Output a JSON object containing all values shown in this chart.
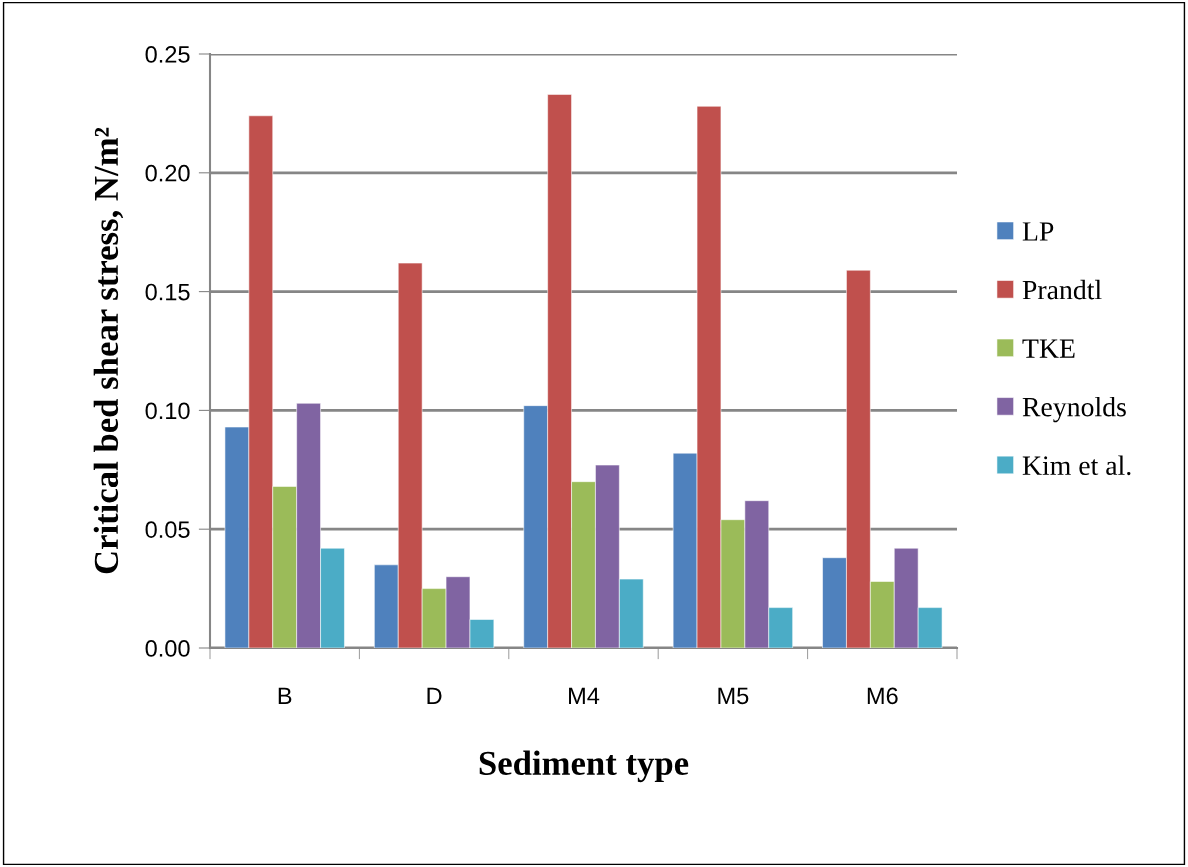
{
  "chart_data": {
    "type": "bar",
    "xlabel": "Sediment type",
    "ylabel": "Critical bed shear stress, N/m²",
    "categories": [
      "B",
      "D",
      "M4",
      "M5",
      "M6"
    ],
    "series": [
      {
        "name": "LP",
        "color": "#4f81bd",
        "values": [
          0.093,
          0.035,
          0.102,
          0.082,
          0.038
        ]
      },
      {
        "name": "Prandtl",
        "color": "#c0504d",
        "values": [
          0.224,
          0.162,
          0.233,
          0.228,
          0.159
        ]
      },
      {
        "name": "TKE",
        "color": "#9bbb59",
        "values": [
          0.068,
          0.025,
          0.07,
          0.054,
          0.028
        ]
      },
      {
        "name": "Reynolds",
        "color": "#8064a2",
        "values": [
          0.103,
          0.03,
          0.077,
          0.062,
          0.042
        ]
      },
      {
        "name": "Kim et al.",
        "color": "#4bacc6",
        "values": [
          0.042,
          0.012,
          0.029,
          0.017,
          0.017
        ]
      }
    ],
    "ylim": [
      0,
      0.25
    ],
    "yticks": [
      {
        "value": 0,
        "label": "0.00"
      },
      {
        "value": 0.05,
        "label": "0.05"
      },
      {
        "value": 0.1,
        "label": "0.10"
      },
      {
        "value": 0.15,
        "label": "0.15"
      },
      {
        "value": 0.2,
        "label": "0.20"
      },
      {
        "value": 0.25,
        "label": "0.25"
      }
    ],
    "grid": "y",
    "legend": "right"
  }
}
